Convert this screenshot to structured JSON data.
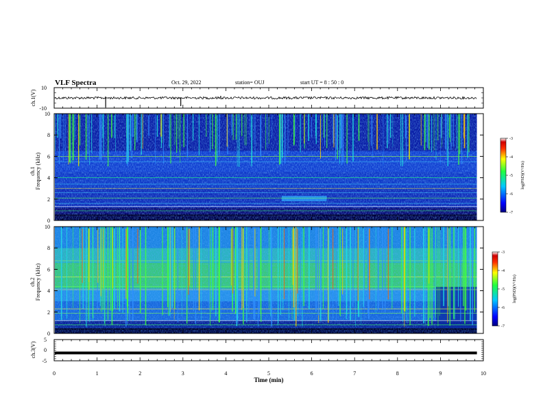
{
  "header": {
    "title": "VLF Spectra",
    "date": "Oct. 29, 2022",
    "station": "station= OUJ",
    "start": "start  UT =   8  : 50 : 0"
  },
  "colors": {
    "axis": "#000000",
    "spectrogram_low": "#0a0a8c",
    "spectrogram_high": "#e00000"
  },
  "chart_data": [
    {
      "type": "line",
      "name": "ch1-waveform",
      "ylabel": "ch.1(V)",
      "ylim": [
        -10,
        10
      ],
      "yticks": [
        "10",
        "-10"
      ],
      "xlim": [
        0,
        10
      ],
      "baseline": 0,
      "spikes": [
        {
          "t": 1.2,
          "v": -9
        },
        {
          "t": 2.95,
          "v": -8
        },
        {
          "t": 3.88,
          "v": 2
        }
      ]
    },
    {
      "type": "heatmap",
      "name": "ch1-spectrogram",
      "ylabel": "Frequency (kHz)",
      "sublabel": "ch.1",
      "ylim": [
        0,
        10
      ],
      "yticks": [
        "0",
        "2",
        "4",
        "6",
        "8",
        "10"
      ],
      "xlim": [
        0,
        10
      ],
      "data_end_min": 9.85,
      "colorbar": {
        "label": "log(PSD)(V²/Hz)",
        "range": [
          -7,
          -3
        ],
        "ticks": [
          "-3",
          "-4",
          "-5",
          "-6",
          "-7"
        ]
      }
    },
    {
      "type": "heatmap",
      "name": "ch2-spectrogram",
      "ylabel": "Frequency (kHz)",
      "sublabel": "ch.2",
      "ylim": [
        0,
        10
      ],
      "yticks": [
        "0",
        "2",
        "4",
        "6",
        "8",
        "10"
      ],
      "xlim": [
        0,
        10
      ],
      "data_end_min": 9.85,
      "colorbar": {
        "label": "log(PSD)(V²/Hz)",
        "range": [
          -7,
          -3
        ],
        "ticks": [
          "-3",
          "-4",
          "-5",
          "-6",
          "-7"
        ]
      }
    },
    {
      "type": "line",
      "name": "ch3-waveform",
      "ylabel": "ch.3(V)",
      "ylim": [
        -5,
        5
      ],
      "yticks": [
        "5",
        "0",
        "-5"
      ],
      "xlim": [
        0,
        10
      ],
      "baseline": -1.3
    }
  ],
  "xaxis": {
    "label": "Time  (min)",
    "ticks": [
      "0",
      "1",
      "2",
      "3",
      "4",
      "5",
      "6",
      "7",
      "8",
      "9",
      "10"
    ]
  }
}
